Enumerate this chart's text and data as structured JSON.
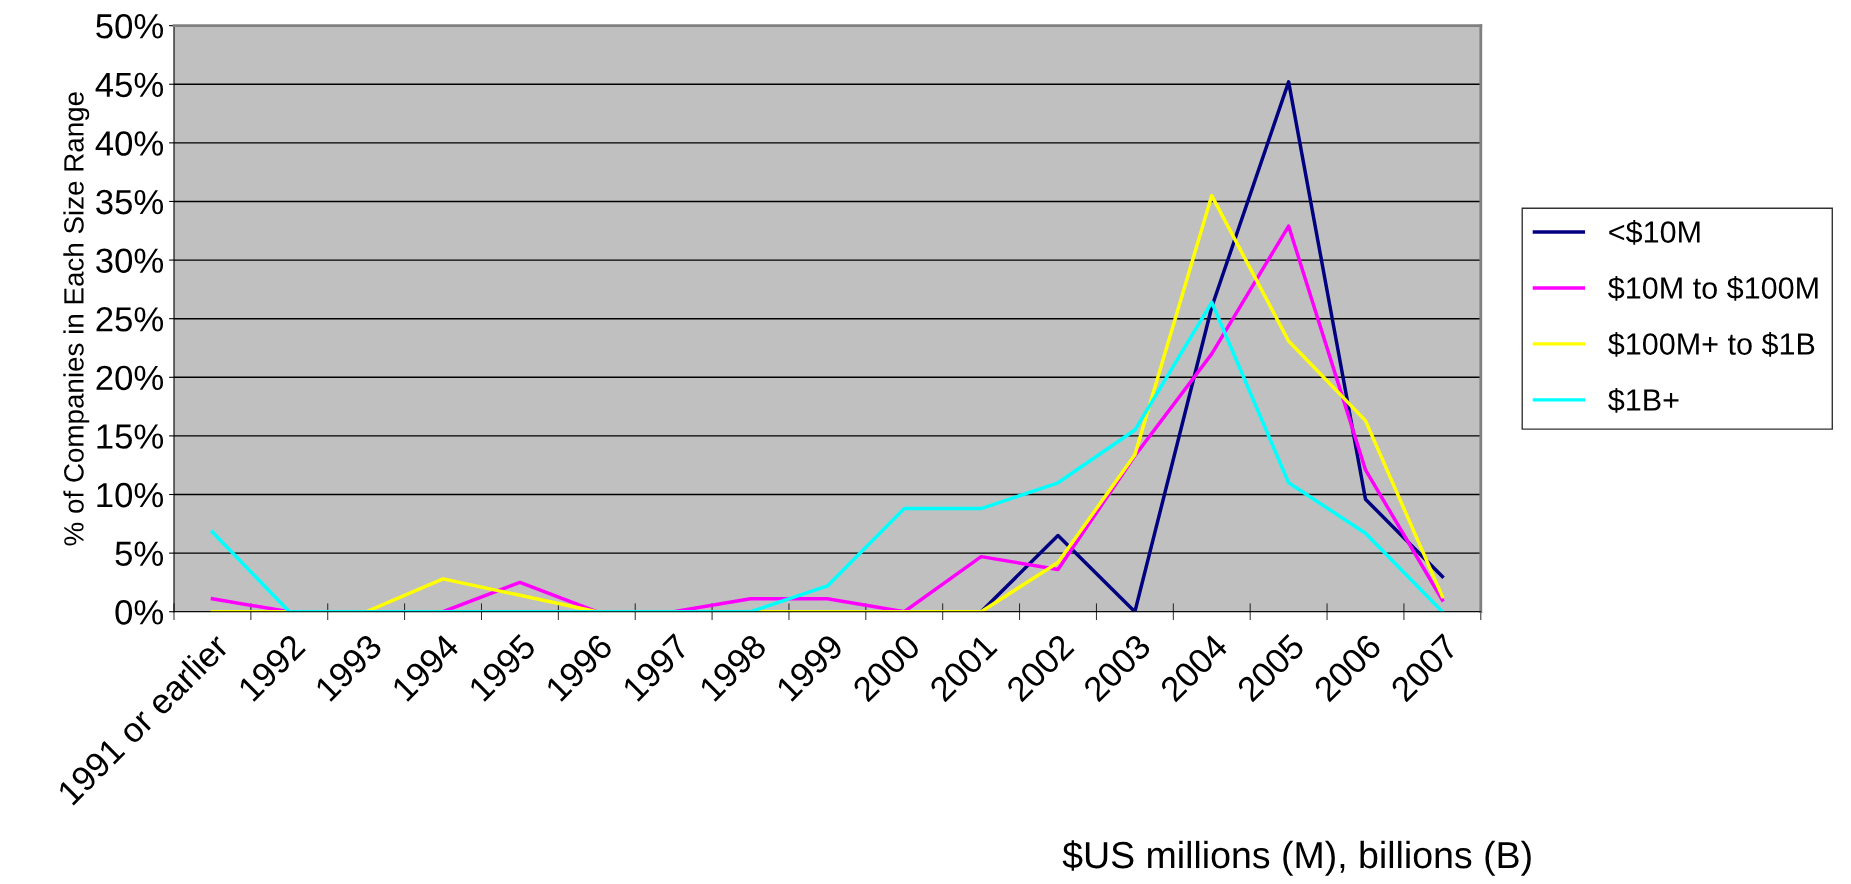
{
  "chart_data": {
    "type": "line",
    "categories": [
      "1991 or earlier",
      "1992",
      "1993",
      "1994",
      "1995",
      "1996",
      "1997",
      "1998",
      "1999",
      "2000",
      "2001",
      "2002",
      "2003",
      "2004",
      "2005",
      "2006",
      "2007"
    ],
    "series": [
      {
        "name": "<$10M",
        "color": "#000080",
        "values": [
          null,
          null,
          null,
          null,
          null,
          null,
          null,
          null,
          null,
          null,
          0,
          6.5,
          0,
          26,
          45.2,
          9.6,
          3.0
        ]
      },
      {
        "name": "$10M to $100M",
        "color": "#ff00ff",
        "values": [
          1.1,
          0,
          0,
          0,
          2.5,
          0,
          0,
          1.1,
          1.1,
          0,
          4.7,
          3.6,
          13.3,
          22,
          32.9,
          12.1,
          1.0
        ]
      },
      {
        "name": "$100M+ to $1B",
        "color": "#ffff00",
        "values": [
          0,
          0,
          0,
          2.8,
          1.4,
          0,
          0,
          0,
          0,
          0,
          0,
          4.2,
          13.4,
          35.5,
          23.1,
          16.3,
          1.3
        ]
      },
      {
        "name": "$1B+",
        "color": "#00ffff",
        "values": [
          6.8,
          0,
          0,
          0,
          0,
          0,
          0,
          0,
          2.2,
          8.8,
          8.8,
          11.0,
          15.5,
          26.4,
          11.0,
          6.7,
          0
        ]
      }
    ],
    "ylabel": "% of Companies in Each Size Range",
    "xlabel": "$US millions (M), billions (B)",
    "ylim": [
      0,
      50
    ],
    "yticks": [
      {
        "value": 0,
        "label": "0%"
      },
      {
        "value": 5,
        "label": "5%"
      },
      {
        "value": 10,
        "label": "10%"
      },
      {
        "value": 15,
        "label": "15%"
      },
      {
        "value": 20,
        "label": "20%"
      },
      {
        "value": 25,
        "label": "25%"
      },
      {
        "value": 30,
        "label": "30%"
      },
      {
        "value": 35,
        "label": "35%"
      },
      {
        "value": 40,
        "label": "40%"
      },
      {
        "value": 45,
        "label": "45%"
      },
      {
        "value": 50,
        "label": "50%"
      }
    ],
    "grid": "y",
    "legend": "right",
    "marker": "none",
    "line_style": "solid"
  }
}
